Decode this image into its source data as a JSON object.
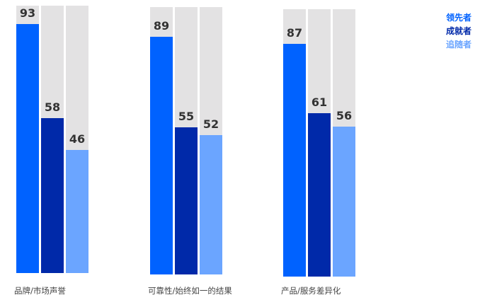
{
  "chart_data": {
    "type": "bar",
    "title": "",
    "xlabel": "",
    "ylabel": "",
    "ylim": [
      0,
      100
    ],
    "grid": false,
    "legend_position": "top-right",
    "categories": [
      "品牌/市场声誉",
      "可靠性/始终如一的结果",
      "产品/服务差异化"
    ],
    "series": [
      {
        "name": "领先者",
        "color": "#0062ff",
        "values": [
          93,
          89,
          87
        ]
      },
      {
        "name": "成就者",
        "color": "#0029a9",
        "values": [
          58,
          55,
          61
        ]
      },
      {
        "name": "追随者",
        "color": "#6ba5ff",
        "values": [
          46,
          52,
          56
        ]
      }
    ],
    "background_color": "#e3e2e3"
  }
}
